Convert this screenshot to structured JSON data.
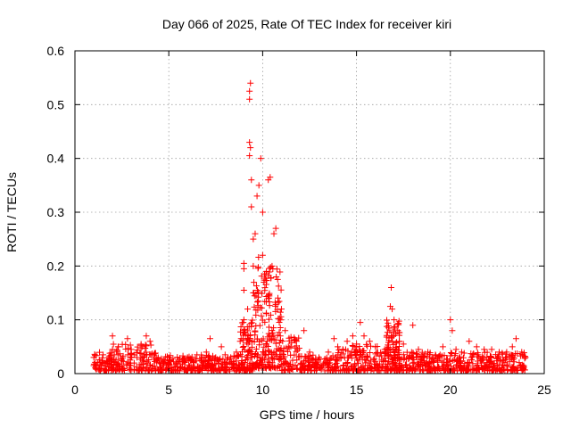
{
  "chart_data": {
    "type": "scatter",
    "title": "Day 066 of 2025, Rate Of TEC Index for receiver kiri",
    "xlabel": "GPS time / hours",
    "ylabel": "ROTI / TECUs",
    "xlim": [
      0,
      25
    ],
    "ylim": [
      0,
      0.6
    ],
    "x_ticks": [
      0,
      5,
      10,
      15,
      20,
      25
    ],
    "y_ticks": [
      0,
      0.1,
      0.2,
      0.3,
      0.4,
      0.5,
      0.6
    ],
    "x_tick_labels": [
      "0",
      "5",
      "10",
      "15",
      "20",
      "25"
    ],
    "y_tick_labels": [
      "0",
      "0.1",
      "0.2",
      "0.3",
      "0.4",
      "0.5",
      "0.6"
    ],
    "grid": true,
    "marker": "plus",
    "marker_color": "#ff0000",
    "series": [
      {
        "points": [
          [
            1.0,
            0.03
          ],
          [
            1.0,
            0.015
          ],
          [
            1.2,
            0.02
          ],
          [
            1.5,
            0.035
          ],
          [
            1.8,
            0.03
          ],
          [
            2.0,
            0.07
          ],
          [
            2.0,
            0.045
          ],
          [
            2.3,
            0.05
          ],
          [
            2.5,
            0.025
          ],
          [
            2.8,
            0.065
          ],
          [
            3.0,
            0.045
          ],
          [
            3.3,
            0.03
          ],
          [
            3.6,
            0.05
          ],
          [
            3.8,
            0.07
          ],
          [
            4.0,
            0.06
          ],
          [
            4.2,
            0.035
          ],
          [
            4.5,
            0.02
          ],
          [
            5.0,
            0.03
          ],
          [
            5.5,
            0.025
          ],
          [
            6.0,
            0.03
          ],
          [
            6.5,
            0.035
          ],
          [
            7.0,
            0.04
          ],
          [
            7.2,
            0.065
          ],
          [
            7.5,
            0.03
          ],
          [
            7.8,
            0.05
          ],
          [
            8.0,
            0.035
          ],
          [
            8.3,
            0.03
          ],
          [
            8.6,
            0.04
          ],
          [
            8.8,
            0.06
          ],
          [
            9.0,
            0.075
          ],
          [
            9.0,
            0.1
          ],
          [
            9.0,
            0.155
          ],
          [
            9.0,
            0.195
          ],
          [
            9.0,
            0.205
          ],
          [
            9.2,
            0.12
          ],
          [
            9.3,
            0.51
          ],
          [
            9.3,
            0.525
          ],
          [
            9.35,
            0.54
          ],
          [
            9.3,
            0.43
          ],
          [
            9.3,
            0.405
          ],
          [
            9.35,
            0.42
          ],
          [
            9.4,
            0.36
          ],
          [
            9.4,
            0.31
          ],
          [
            9.5,
            0.25
          ],
          [
            9.5,
            0.2
          ],
          [
            9.5,
            0.15
          ],
          [
            9.6,
            0.26
          ],
          [
            9.7,
            0.33
          ],
          [
            9.8,
            0.35
          ],
          [
            9.9,
            0.4
          ],
          [
            10.0,
            0.3
          ],
          [
            10.0,
            0.22
          ],
          [
            10.1,
            0.185
          ],
          [
            10.2,
            0.19
          ],
          [
            10.3,
            0.36
          ],
          [
            10.4,
            0.365
          ],
          [
            10.5,
            0.2
          ],
          [
            10.6,
            0.26
          ],
          [
            10.7,
            0.27
          ],
          [
            10.8,
            0.175
          ],
          [
            11.0,
            0.12
          ],
          [
            11.2,
            0.08
          ],
          [
            11.5,
            0.05
          ],
          [
            11.8,
            0.06
          ],
          [
            12.2,
            0.08
          ],
          [
            12.5,
            0.04
          ],
          [
            13.0,
            0.03
          ],
          [
            13.5,
            0.04
          ],
          [
            13.8,
            0.065
          ],
          [
            14.0,
            0.05
          ],
          [
            14.5,
            0.06
          ],
          [
            14.8,
            0.07
          ],
          [
            15.0,
            0.055
          ],
          [
            15.2,
            0.095
          ],
          [
            15.4,
            0.07
          ],
          [
            15.7,
            0.06
          ],
          [
            16.0,
            0.05
          ],
          [
            16.5,
            0.045
          ],
          [
            16.7,
            0.085
          ],
          [
            16.8,
            0.125
          ],
          [
            16.85,
            0.16
          ],
          [
            16.9,
            0.12
          ],
          [
            17.0,
            0.1
          ],
          [
            17.2,
            0.08
          ],
          [
            17.5,
            0.055
          ],
          [
            18.0,
            0.09
          ],
          [
            18.3,
            0.045
          ],
          [
            18.8,
            0.04
          ],
          [
            19.2,
            0.035
          ],
          [
            19.6,
            0.05
          ],
          [
            20.0,
            0.1
          ],
          [
            20.1,
            0.08
          ],
          [
            20.3,
            0.045
          ],
          [
            20.6,
            0.04
          ],
          [
            21.0,
            0.06
          ],
          [
            21.4,
            0.05
          ],
          [
            21.8,
            0.045
          ],
          [
            22.2,
            0.045
          ],
          [
            22.6,
            0.04
          ],
          [
            23.0,
            0.04
          ],
          [
            23.3,
            0.05
          ],
          [
            23.5,
            0.065
          ],
          [
            23.8,
            0.04
          ],
          [
            24.0,
            0.03
          ]
        ],
        "bands": [
          {
            "x0": 1.0,
            "x1": 2.0,
            "ymin": 0.005,
            "ymax": 0.04
          },
          {
            "x0": 2.0,
            "x1": 4.3,
            "ymin": 0.005,
            "ymax": 0.055
          },
          {
            "x0": 4.3,
            "x1": 8.8,
            "ymin": 0.005,
            "ymax": 0.035
          },
          {
            "x0": 8.8,
            "x1": 9.5,
            "ymin": 0.005,
            "ymax": 0.1
          },
          {
            "x0": 9.5,
            "x1": 10.0,
            "ymin": 0.01,
            "ymax": 0.22
          },
          {
            "x0": 10.0,
            "x1": 11.0,
            "ymin": 0.01,
            "ymax": 0.2
          },
          {
            "x0": 11.0,
            "x1": 12.0,
            "ymin": 0.005,
            "ymax": 0.07
          },
          {
            "x0": 12.0,
            "x1": 14.0,
            "ymin": 0.005,
            "ymax": 0.035
          },
          {
            "x0": 14.0,
            "x1": 16.5,
            "ymin": 0.005,
            "ymax": 0.055
          },
          {
            "x0": 16.5,
            "x1": 17.3,
            "ymin": 0.005,
            "ymax": 0.1
          },
          {
            "x0": 17.3,
            "x1": 24.0,
            "ymin": 0.005,
            "ymax": 0.04
          }
        ]
      }
    ]
  }
}
